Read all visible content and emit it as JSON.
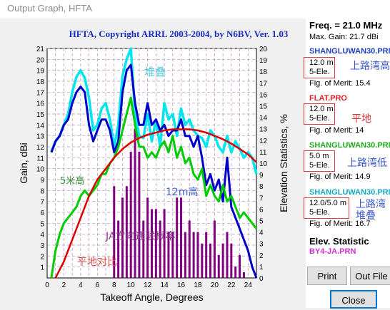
{
  "window": {
    "title": "Output Graph, HFTA"
  },
  "chart_data": {
    "type": "line",
    "title": "HFTA, Copyright ARRL 2003-2004, by N6BV, Ver. 1.03",
    "xlabel": "Takeoff Angle, Degrees",
    "ylabel_left": "Gain, dBi",
    "ylabel_right": "Elevation Statistics, %",
    "xlim": [
      0,
      25
    ],
    "ylim_left": [
      0,
      21
    ],
    "ylim_right": [
      0,
      20
    ],
    "xticks": [
      0,
      2,
      4,
      6,
      8,
      10,
      12,
      14,
      16,
      18,
      20,
      22,
      24
    ],
    "yticks_left": [
      1,
      2,
      3,
      4,
      5,
      6,
      7,
      8,
      9,
      10,
      11,
      12,
      13,
      14,
      15,
      16,
      17,
      18,
      19,
      20,
      21
    ],
    "yticks_right": [
      0,
      1,
      2,
      3,
      4,
      5,
      6,
      7,
      8,
      9,
      10,
      11,
      12,
      13,
      14,
      15,
      16,
      17,
      18,
      19,
      20
    ],
    "grid": true,
    "annotations": [
      {
        "text": "堆叠",
        "color": "#4fc9d6"
      },
      {
        "text": "5米高",
        "color": "#3a8f3a"
      },
      {
        "text": "12m高",
        "color": "#3f5fd6"
      },
      {
        "text": "JA方向通联概率",
        "color": "#8a3a8a"
      },
      {
        "text": "平地对比",
        "color": "#e05050"
      }
    ],
    "series": [
      {
        "color": "#00e5ee",
        "x": [
          0.5,
          1,
          1.5,
          2,
          2.5,
          3,
          3.5,
          4,
          4.5,
          5,
          5.5,
          6,
          6.5,
          7,
          7.5,
          8,
          8.5,
          9,
          9.5,
          10,
          10.5,
          11,
          11.5,
          12,
          12.5,
          13,
          13.5,
          14,
          14.5,
          15,
          15.5,
          16,
          16.5,
          17,
          17.5,
          18,
          18.5,
          19,
          19.5,
          20,
          20.5,
          21,
          21.5,
          22,
          22.5,
          23,
          23.5,
          24,
          24.5,
          25
        ],
        "y": [
          11.5,
          12.5,
          13,
          14,
          15,
          17,
          18.4,
          19,
          18.3,
          16.5,
          13.5,
          14,
          15.5,
          16,
          14.5,
          12,
          14,
          18.5,
          20,
          21,
          15,
          13,
          12.8,
          15,
          12.5,
          14.5,
          12,
          16,
          14.5,
          15,
          13,
          15.5,
          14,
          14.5,
          13.5,
          13,
          12.8,
          12,
          13.5,
          13,
          12,
          11.5,
          13,
          11.5,
          12.5,
          11.8,
          11,
          11.5,
          11,
          9.5
        ]
      },
      {
        "color": "#0000cc",
        "x": [
          0.5,
          1,
          1.5,
          2,
          2.5,
          3,
          3.5,
          4,
          4.5,
          5,
          5.5,
          6,
          6.5,
          7,
          7.5,
          8,
          8.5,
          9,
          9.5,
          10,
          10.5,
          11,
          11.5,
          12,
          12.5,
          13,
          13.5,
          14,
          14.5,
          15,
          15.5,
          16,
          16.5,
          17,
          17.5,
          18,
          18.5,
          19,
          19.5,
          20,
          20.5,
          21,
          21.5,
          22,
          22.5,
          23,
          23.5,
          24,
          24.5,
          25
        ],
        "y": [
          11.5,
          12.5,
          13,
          14,
          14.5,
          16,
          17,
          17.5,
          17,
          14,
          12.5,
          13.5,
          14.5,
          14.5,
          13.5,
          11.5,
          12.5,
          17,
          19,
          19.5,
          16,
          14,
          14,
          16,
          14,
          14.5,
          13.5,
          14,
          13,
          13.5,
          13.5,
          14.5,
          13,
          13,
          12,
          13,
          11,
          8.5,
          9.5,
          8,
          9,
          7,
          11,
          6.5,
          5.5,
          4.5,
          3.5,
          2.5,
          1,
          0
        ]
      },
      {
        "color": "#00cc00",
        "x": [
          0.5,
          1,
          1.5,
          2,
          2.5,
          3,
          3.5,
          4,
          4.5,
          5,
          5.5,
          6,
          6.5,
          7,
          7.5,
          8,
          8.5,
          9,
          9.5,
          10,
          10.5,
          11,
          11.5,
          12,
          12.5,
          13,
          13.5,
          14,
          14.5,
          15,
          15.5,
          16,
          16.5,
          17,
          17.5,
          18,
          18.5,
          19,
          19.5,
          20,
          20.5,
          21,
          21.5,
          22,
          22.5,
          23,
          23.5,
          24,
          24.5,
          25
        ],
        "y": [
          0,
          2.5,
          4,
          5,
          5.5,
          6,
          6.5,
          7.5,
          8,
          7.5,
          8,
          8.5,
          9.5,
          9.5,
          10.5,
          11,
          12,
          13.5,
          15,
          16.5,
          14,
          12,
          12,
          11,
          11.5,
          11,
          12,
          12.5,
          11.5,
          13,
          11,
          12,
          10.5,
          11,
          9.5,
          9,
          10,
          7.5,
          8.5,
          7.5,
          7,
          8.5,
          7,
          7.5,
          6.5,
          5.5,
          6,
          5.5,
          5,
          4.5
        ]
      },
      {
        "color": "#dd0000",
        "x": [
          1,
          2,
          3,
          4,
          5,
          6,
          7,
          8,
          9,
          10,
          11,
          12,
          13,
          14,
          15,
          16,
          17,
          18,
          19,
          20,
          21,
          22,
          23,
          24,
          25
        ],
        "y": [
          0,
          1.5,
          3.5,
          5.5,
          7.5,
          9,
          10,
          11,
          11.8,
          12.4,
          12.8,
          13.1,
          13.3,
          13.5,
          13.6,
          13.6,
          13.6,
          13.5,
          13.3,
          13,
          12.7,
          12.3,
          11.8,
          11.3,
          10.6
        ]
      }
    ],
    "bars": {
      "color": "#800080",
      "x": [
        8,
        8.5,
        9,
        9.5,
        10,
        10.5,
        11,
        11.5,
        12,
        12.5,
        13,
        13.5,
        14,
        14.5,
        15,
        15.5,
        16,
        16.5,
        17,
        17.5,
        18,
        18.5,
        19,
        19.5,
        20,
        20.5,
        21,
        21.5,
        22,
        22.5,
        23,
        23.5,
        24
      ],
      "y": [
        8,
        5,
        7,
        8,
        11,
        13,
        11,
        5,
        7,
        6,
        6,
        5,
        6,
        4,
        4,
        7,
        7,
        4,
        5,
        4,
        4,
        3,
        4,
        3,
        5,
        2,
        3,
        4,
        3,
        1,
        2,
        0.5,
        0
      ]
    }
  },
  "panel": {
    "freq": "Freq. = 21.0 MHz",
    "max_gain": "Max. Gain: 21.7 dBi",
    "entries": [
      {
        "file": "SHANGLUWAN30.PRN",
        "file_color": "#1f3fbf",
        "height": "12.0 m",
        "ele": "5-Ele.",
        "merit": "Fig. of Merit: 15.4",
        "cn": "上路湾高"
      },
      {
        "file": "FLAT.PRO",
        "file_color": "#dd2222",
        "height": "12.0 m",
        "ele": "5-Ele.",
        "merit": "Fig. of Merit:  14",
        "cn": "平地"
      },
      {
        "file": "SHANGLUWAN30.PRN",
        "file_color": "#1faa1f",
        "height": "5.0 m",
        "ele": "5-Ele.",
        "merit": "Fig. of Merit: 14.9",
        "cn": "上路湾低"
      },
      {
        "file": "SHANGLUWAN30.PRN",
        "file_color": "#17a9bf",
        "height": "12.0/5.0 m",
        "ele": "5-Ele.",
        "merit": "Fig. of Merit: 16.7",
        "cn": "上路湾堆叠"
      }
    ],
    "elev_statistic": "Elev. Statistic",
    "elev_file": "BY4-JA.PRN",
    "print_label": "Print",
    "output_file_label": "Out File",
    "close_label": "Close"
  }
}
